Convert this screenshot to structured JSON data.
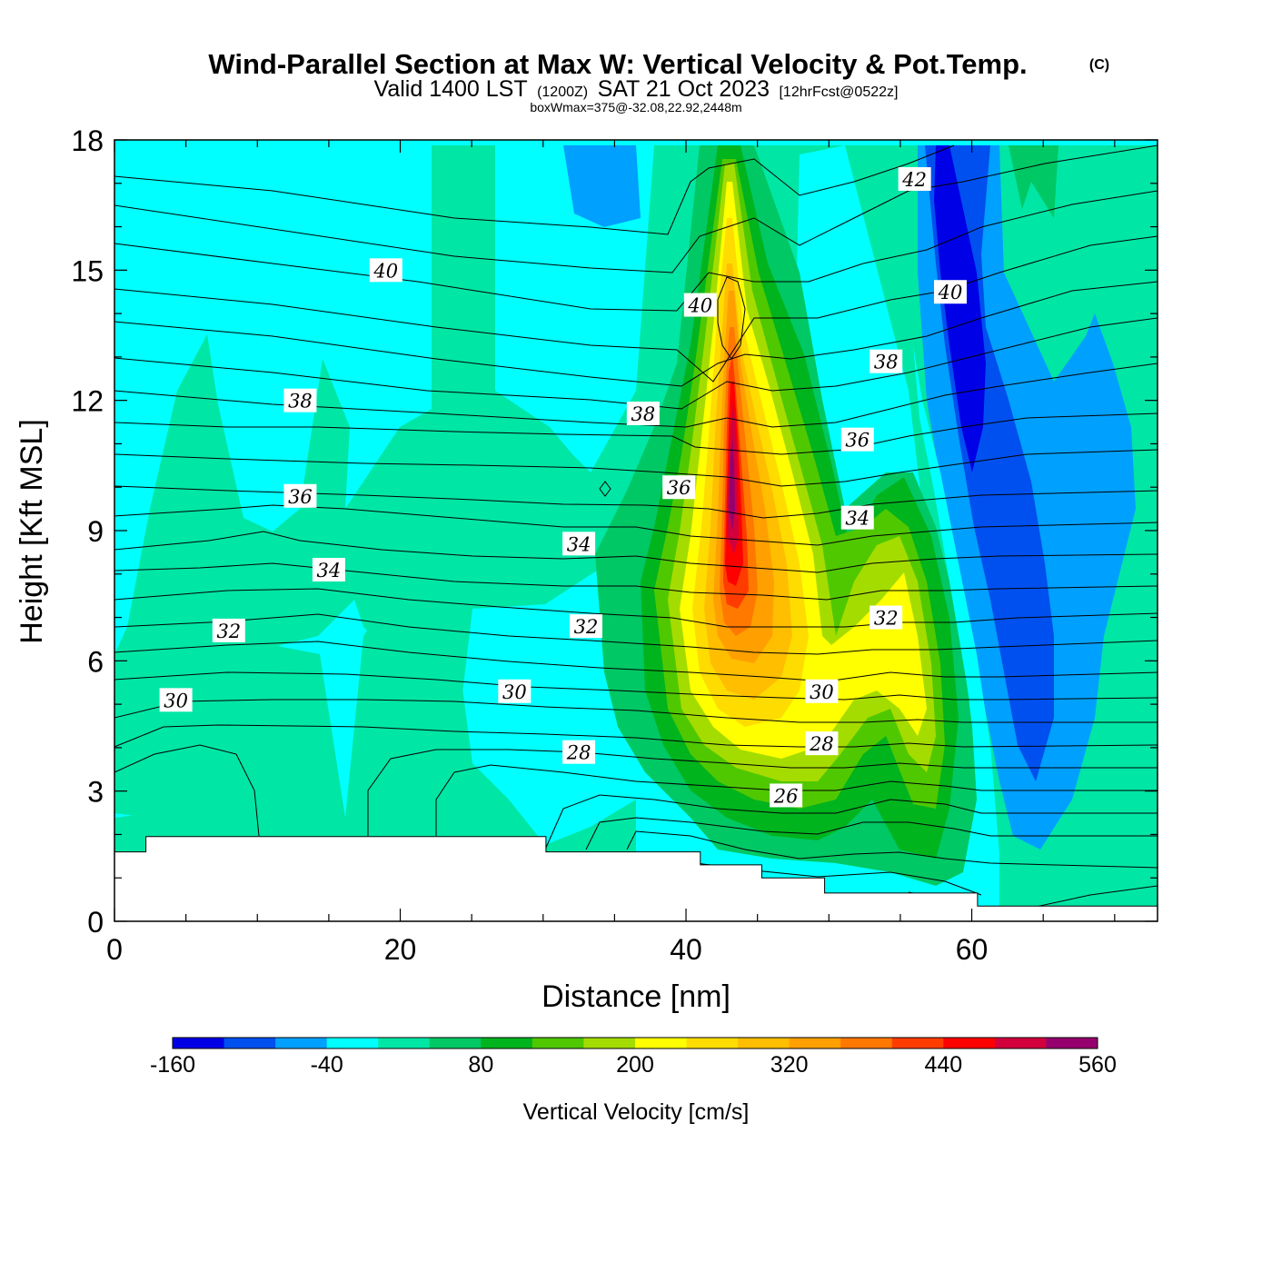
{
  "title": "Wind-Parallel Section at Max W: Vertical Velocity & Pot.Temp.",
  "copyright": "(C)",
  "subtitle": {
    "part1": "Valid 1400 LST",
    "part2": "(1200Z)",
    "part3": "SAT 21 Oct 2023",
    "part4": "[12hrFcst@0522z]"
  },
  "subsubtitle": "boxWmax=375@-32.08,22.92,2448m",
  "chart_data": {
    "type": "contour",
    "xlabel": "Distance [nm]",
    "ylabel": "Height [Kft MSL]",
    "xlim": [
      0,
      73
    ],
    "ylim": [
      0,
      18
    ],
    "x_ticks": [
      "0",
      "20",
      "40",
      "60"
    ],
    "y_ticks": [
      "0",
      "3",
      "6",
      "9",
      "12",
      "15",
      "18"
    ],
    "filled_field": {
      "name": "Vertical Velocity [cm/s]",
      "levels": [
        -160,
        -120,
        -80,
        -40,
        0,
        40,
        80,
        120,
        160,
        200,
        240,
        280,
        320,
        360,
        400,
        440,
        480,
        520,
        560
      ],
      "colors": [
        "#0000e6",
        "#0050f0",
        "#00a0ff",
        "#00ffff",
        "#00e6a5",
        "#00c864",
        "#00b41e",
        "#50c800",
        "#a5dc00",
        "#ffff00",
        "#ffdc00",
        "#ffbe00",
        "#ffa000",
        "#ff7800",
        "#ff3c00",
        "#ff0000",
        "#d2003c",
        "#96006e"
      ],
      "colorbar_labels": [
        "-160",
        "-40",
        "80",
        "200",
        "320",
        "440",
        "560"
      ],
      "core_max": 375,
      "core_location_nm": 43,
      "core_height_kft": 10.5
    },
    "contour_field": {
      "name": "Pot.Temp.",
      "labels": [
        {
          "text": "40",
          "x": 19,
          "y": 15.0
        },
        {
          "text": "42",
          "x": 56,
          "y": 17.1
        },
        {
          "text": "40",
          "x": 41,
          "y": 14.2
        },
        {
          "text": "40",
          "x": 58.5,
          "y": 14.5
        },
        {
          "text": "38",
          "x": 13,
          "y": 12.0
        },
        {
          "text": "38",
          "x": 37,
          "y": 11.7
        },
        {
          "text": "38",
          "x": 54,
          "y": 12.9
        },
        {
          "text": "36",
          "x": 13,
          "y": 9.8
        },
        {
          "text": "36",
          "x": 39.5,
          "y": 10.0
        },
        {
          "text": "36",
          "x": 52,
          "y": 11.1
        },
        {
          "text": "34",
          "x": 15,
          "y": 8.1
        },
        {
          "text": "34",
          "x": 32.5,
          "y": 8.7
        },
        {
          "text": "34",
          "x": 52,
          "y": 9.3
        },
        {
          "text": "32",
          "x": 8,
          "y": 6.7
        },
        {
          "text": "32",
          "x": 33,
          "y": 6.8
        },
        {
          "text": "32",
          "x": 54,
          "y": 7.0
        },
        {
          "text": "30",
          "x": 4.3,
          "y": 5.1
        },
        {
          "text": "30",
          "x": 28,
          "y": 5.3
        },
        {
          "text": "30",
          "x": 49.5,
          "y": 5.3
        },
        {
          "text": "28",
          "x": 32.5,
          "y": 3.9
        },
        {
          "text": "28",
          "x": 49.5,
          "y": 4.1
        },
        {
          "text": "26",
          "x": 47,
          "y": 2.9
        }
      ]
    },
    "terrain_kft": [
      [
        0,
        1.6
      ],
      [
        2.2,
        1.6
      ],
      [
        2.2,
        1.95
      ],
      [
        30.2,
        1.95
      ],
      [
        30.2,
        1.6
      ],
      [
        41,
        1.6
      ],
      [
        41,
        1.3
      ],
      [
        45.3,
        1.3
      ],
      [
        45.3,
        1.0
      ],
      [
        49.7,
        1.0
      ],
      [
        49.7,
        0.65
      ],
      [
        60.4,
        0.65
      ],
      [
        60.4,
        0.35
      ],
      [
        73,
        0.35
      ]
    ]
  }
}
